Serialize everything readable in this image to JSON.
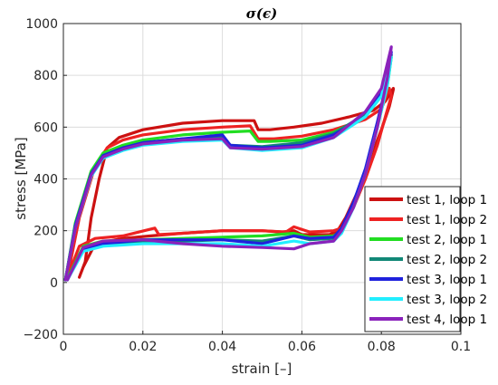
{
  "chart_data": {
    "type": "line",
    "title": "σ(ϵ)",
    "xlabel": "strain [–]",
    "ylabel": "stress [MPa]",
    "xlim": [
      0,
      0.1
    ],
    "ylim": [
      -200,
      1000
    ],
    "xticks": [
      0,
      0.02,
      0.04,
      0.06,
      0.08,
      0.1
    ],
    "xtick_labels": [
      "0",
      "0.02",
      "0.04",
      "0.06",
      "0.08",
      "0.1"
    ],
    "yticks": [
      -200,
      0,
      200,
      400,
      600,
      800,
      1000
    ],
    "ytick_labels": [
      "−200",
      "0",
      "200",
      "400",
      "600",
      "800",
      "1000"
    ],
    "grid": true,
    "legend_position": "bottom-right",
    "series": [
      {
        "name": "test 1, loop 1",
        "color": "#cc1111",
        "x": [
          0.004,
          0.0055,
          0.007,
          0.009,
          0.011,
          0.014,
          0.02,
          0.03,
          0.04,
          0.048,
          0.049,
          0.052,
          0.058,
          0.065,
          0.072,
          0.078,
          0.081,
          0.083,
          0.083,
          0.082,
          0.08,
          0.077,
          0.074,
          0.071,
          0.069,
          0.067,
          0.06,
          0.058,
          0.055,
          0.05,
          0.04,
          0.03,
          0.022,
          0.015,
          0.008,
          0.005
        ],
        "y": [
          20,
          80,
          250,
          400,
          520,
          560,
          590,
          615,
          625,
          625,
          590,
          590,
          600,
          615,
          640,
          665,
          700,
          750,
          745,
          680,
          590,
          470,
          350,
          250,
          200,
          185,
          185,
          200,
          195,
          200,
          200,
          190,
          180,
          170,
          150,
          60
        ]
      },
      {
        "name": "test 1, loop 2",
        "color": "#ee2222",
        "x": [
          0.001,
          0.004,
          0.008,
          0.011,
          0.015,
          0.02,
          0.03,
          0.04,
          0.047,
          0.049,
          0.053,
          0.06,
          0.068,
          0.076,
          0.08,
          0.082,
          0.0825,
          0.081,
          0.079,
          0.076,
          0.073,
          0.07,
          0.068,
          0.062,
          0.058,
          0.056,
          0.05,
          0.04,
          0.03,
          0.024,
          0.023,
          0.015,
          0.008,
          0.004,
          0.001
        ],
        "y": [
          20,
          250,
          450,
          520,
          550,
          570,
          590,
          600,
          605,
          555,
          555,
          565,
          590,
          630,
          670,
          750,
          720,
          640,
          530,
          400,
          290,
          210,
          200,
          195,
          215,
          195,
          200,
          200,
          190,
          185,
          210,
          180,
          170,
          140,
          20
        ]
      },
      {
        "name": "test 2, loop 1",
        "color": "#22dd22",
        "x": [
          0.0005,
          0.003,
          0.007,
          0.01,
          0.015,
          0.02,
          0.03,
          0.04,
          0.047,
          0.049,
          0.052,
          0.06,
          0.068,
          0.076,
          0.08,
          0.082,
          0.0825,
          0.0815,
          0.079,
          0.076,
          0.073,
          0.07,
          0.068,
          0.062,
          0.058,
          0.05,
          0.04,
          0.03,
          0.02,
          0.01,
          0.005,
          0.001
        ],
        "y": [
          10,
          230,
          430,
          500,
          530,
          550,
          570,
          580,
          585,
          545,
          545,
          550,
          580,
          640,
          720,
          820,
          870,
          760,
          600,
          420,
          290,
          200,
          180,
          175,
          190,
          180,
          175,
          170,
          165,
          160,
          140,
          15
        ]
      },
      {
        "name": "test 2, loop 2",
        "color": "#118877",
        "x": [
          0.0005,
          0.003,
          0.007,
          0.01,
          0.015,
          0.02,
          0.03,
          0.04,
          0.042,
          0.05,
          0.06,
          0.068,
          0.076,
          0.08,
          0.0825,
          0.0815,
          0.079,
          0.076,
          0.073,
          0.07,
          0.068,
          0.062,
          0.058,
          0.05,
          0.04,
          0.03,
          0.02,
          0.01,
          0.005,
          0.001
        ],
        "y": [
          10,
          220,
          420,
          490,
          520,
          540,
          555,
          560,
          530,
          525,
          540,
          575,
          650,
          730,
          880,
          770,
          610,
          430,
          300,
          200,
          170,
          165,
          180,
          160,
          165,
          160,
          155,
          150,
          130,
          10
        ]
      },
      {
        "name": "test 3, loop 1",
        "color": "#1f22dd",
        "x": [
          0.0005,
          0.003,
          0.007,
          0.01,
          0.015,
          0.02,
          0.03,
          0.04,
          0.042,
          0.05,
          0.06,
          0.068,
          0.076,
          0.08,
          0.0825,
          0.0815,
          0.079,
          0.076,
          0.073,
          0.07,
          0.068,
          0.062,
          0.058,
          0.05,
          0.04,
          0.03,
          0.02,
          0.01,
          0.005,
          0.001
        ],
        "y": [
          10,
          220,
          420,
          490,
          520,
          540,
          555,
          570,
          530,
          520,
          530,
          570,
          640,
          730,
          890,
          780,
          620,
          440,
          310,
          210,
          175,
          170,
          180,
          150,
          165,
          165,
          165,
          150,
          130,
          10
        ]
      },
      {
        "name": "test 3, loop 2",
        "color": "#22eeff",
        "x": [
          0.0005,
          0.003,
          0.007,
          0.01,
          0.015,
          0.02,
          0.03,
          0.04,
          0.042,
          0.05,
          0.06,
          0.068,
          0.076,
          0.08,
          0.0825,
          0.0815,
          0.079,
          0.076,
          0.073,
          0.07,
          0.068,
          0.062,
          0.058,
          0.05,
          0.04,
          0.03,
          0.02,
          0.01,
          0.005,
          0.001
        ],
        "y": [
          10,
          210,
          410,
          480,
          510,
          530,
          545,
          550,
          520,
          510,
          520,
          560,
          640,
          720,
          870,
          760,
          600,
          420,
          290,
          190,
          160,
          150,
          160,
          140,
          150,
          150,
          150,
          140,
          120,
          10
        ]
      },
      {
        "name": "test 4, loop 1",
        "color": "#8a22bb",
        "x": [
          0.0005,
          0.003,
          0.007,
          0.01,
          0.015,
          0.02,
          0.03,
          0.04,
          0.042,
          0.05,
          0.06,
          0.068,
          0.076,
          0.08,
          0.0825,
          0.0815,
          0.079,
          0.076,
          0.073,
          0.07,
          0.068,
          0.062,
          0.058,
          0.05,
          0.04,
          0.03,
          0.02,
          0.01,
          0.005,
          0.001
        ],
        "y": [
          10,
          210,
          415,
          485,
          515,
          535,
          550,
          555,
          520,
          515,
          525,
          560,
          660,
          750,
          910,
          790,
          600,
          420,
          290,
          200,
          160,
          150,
          130,
          135,
          140,
          150,
          165,
          160,
          135,
          10
        ]
      }
    ]
  }
}
